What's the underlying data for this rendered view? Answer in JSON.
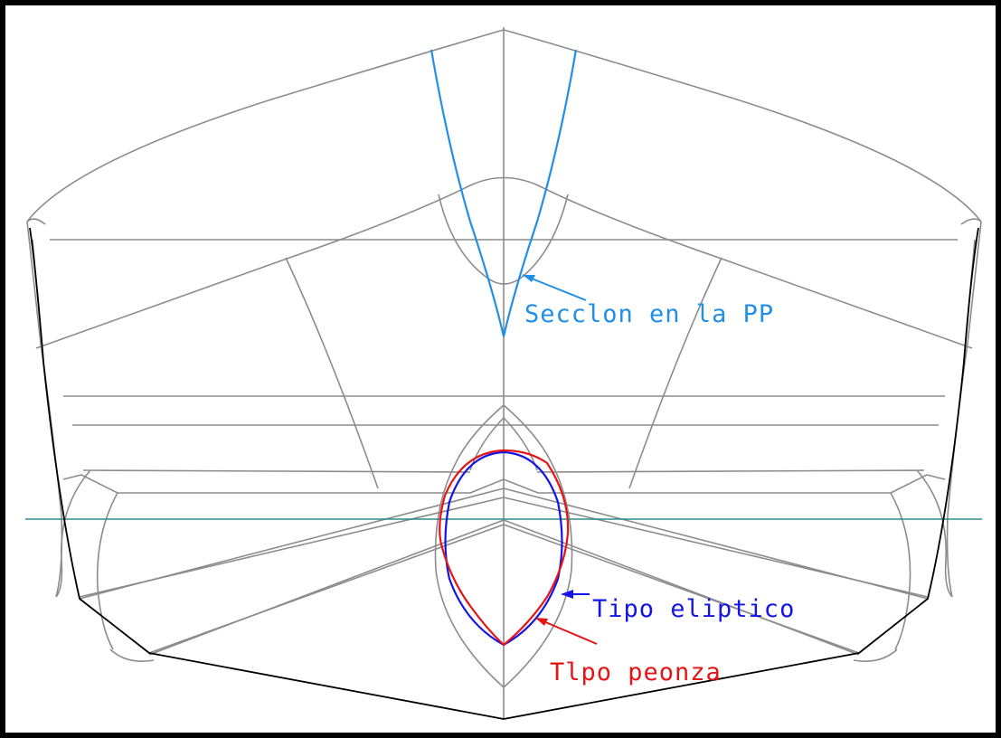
{
  "labels": {
    "section_pp": "Secclon en la PP",
    "elliptic": "Tipo eliptico",
    "peonza": "Tlpo peonza"
  },
  "colors": {
    "section_pp": "#1f8fe8",
    "elliptic": "#1414e6",
    "peonza": "#e61414",
    "waterline": "#2e8c8c",
    "hull_lines": "#8c8c8c",
    "outline": "#000000"
  }
}
